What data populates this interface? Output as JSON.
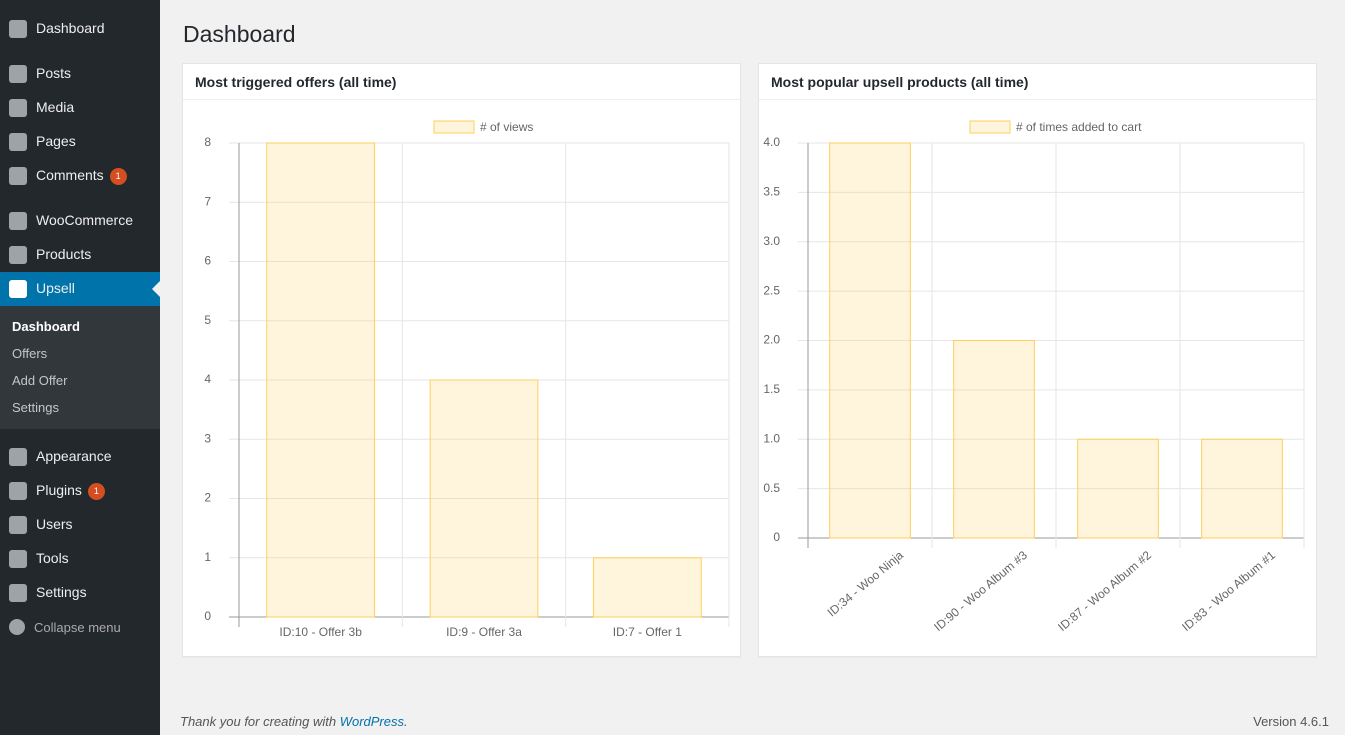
{
  "menu": [
    {
      "label": "Dashboard"
    },
    {
      "label": "Posts"
    },
    {
      "label": "Media"
    },
    {
      "label": "Pages"
    },
    {
      "label": "Comments",
      "badge": 1
    },
    {
      "label": "WooCommerce"
    },
    {
      "label": "Products"
    },
    {
      "label": "Upsell",
      "submenu": [
        "Dashboard",
        "Offers",
        "Add Offer",
        "Settings"
      ]
    },
    {
      "label": "Appearance"
    },
    {
      "label": "Plugins",
      "badge": 1
    },
    {
      "label": "Users"
    },
    {
      "label": "Tools"
    },
    {
      "label": "Settings"
    }
  ],
  "collapse": "Collapse menu",
  "page_title": "Dashboard",
  "chart_data": [
    {
      "type": "bar",
      "title": "Most triggered offers (all time)",
      "categories": [
        "ID:10 - Offer 3b",
        "ID:9 - Offer 3a",
        "ID:7 - Offer 1"
      ],
      "series": [
        {
          "name": "# of views",
          "color": "#ffce56",
          "values": [
            8,
            4,
            1
          ]
        }
      ],
      "ylim": [
        0,
        8
      ],
      "yticks": [
        0,
        1,
        2,
        3,
        4,
        5,
        6,
        7,
        8
      ],
      "grid": true,
      "legend": "top"
    },
    {
      "type": "bar",
      "title": "Most popular upsell products (all time)",
      "categories": [
        "ID:34 - Woo Ninja",
        "ID:90 - Woo Album #3",
        "ID:87 - Woo Album #2",
        "ID:83 - Woo Album #1"
      ],
      "series": [
        {
          "name": "# of times added to cart",
          "color": "#ffce56",
          "values": [
            4,
            2,
            1,
            1
          ]
        }
      ],
      "ylim": [
        0,
        4
      ],
      "yticks": [
        0,
        0.5,
        {
          "value": 1,
          "label": "1.0"
        },
        1.5,
        {
          "value": 2,
          "label": "2.0"
        },
        2.5,
        {
          "value": 3,
          "label": "3.0"
        },
        3.5,
        {
          "value": 4,
          "label": "4.0"
        }
      ],
      "grid": true,
      "legend": "top"
    }
  ],
  "footer": {
    "text_before": "Thank you for creating with",
    "link": "WordPress",
    "text_after": ".",
    "version": "Version 4.6.1"
  }
}
